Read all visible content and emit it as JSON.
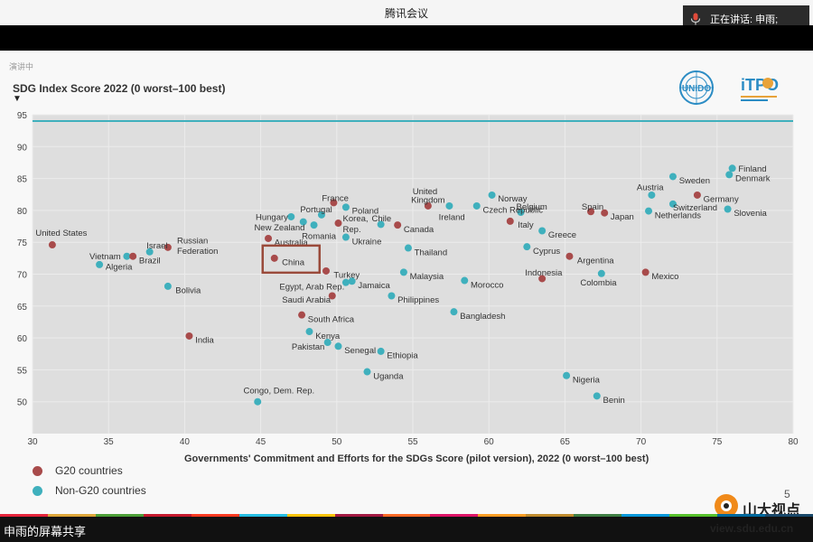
{
  "window": {
    "title": "腾讯会议",
    "speaking_label": "正在讲话: 申雨;",
    "share_label": "申雨的屏幕共享"
  },
  "slide": {
    "watermark": "演讲中",
    "page_number": "5",
    "logos": {
      "unido": "UNIDO",
      "itpo": "iTPO",
      "sdu_name": "山大视点",
      "sdu_url": "view.sdu.edu.cn"
    }
  },
  "colors": {
    "g20": "#a84b4b",
    "non_g20": "#3fb0bd",
    "reference_line": "#3fb0bd",
    "plot_bg": "#dedede",
    "highlight_box": "#9a4a3a"
  },
  "chart_data": {
    "type": "scatter",
    "title": "SDG Index Score 2022 (0 worst–100 best)",
    "ylabel_arrow": "▼",
    "xlabel": "Governments' Commitment and Efforts for the SDGs Score (pilot version), 2022 (0 worst–100 best)",
    "xlim": [
      30,
      80
    ],
    "ylim": [
      45,
      95
    ],
    "xticks": [
      30,
      35,
      40,
      45,
      50,
      55,
      60,
      65,
      70,
      75,
      80
    ],
    "yticks": [
      50,
      55,
      60,
      65,
      70,
      75,
      80,
      85,
      90,
      95
    ],
    "reference_line_y": 94,
    "grid": true,
    "highlight": "China",
    "legend": [
      {
        "name": "G20 countries",
        "group": "g20"
      },
      {
        "name": "Non-G20 countries",
        "group": "non_g20"
      }
    ],
    "points": [
      {
        "label": "United States",
        "x": 31.3,
        "y": 74.6,
        "group": "g20",
        "lx": 30.2,
        "ly": 76.5,
        "anchor": "start"
      },
      {
        "label": "Vietnam",
        "x": 36.2,
        "y": 72.8,
        "group": "non_g20",
        "lx": 35.8,
        "ly": 72.8,
        "anchor": "end"
      },
      {
        "label": "Brazil",
        "x": 36.6,
        "y": 72.8,
        "group": "g20",
        "lx": 37.0,
        "ly": 72.2,
        "anchor": "start"
      },
      {
        "label": "Algeria",
        "x": 34.4,
        "y": 71.5,
        "group": "non_g20",
        "lx": 34.8,
        "ly": 71.2,
        "anchor": "start"
      },
      {
        "label": "Israel",
        "x": 37.7,
        "y": 73.5,
        "group": "non_g20",
        "lx": 37.5,
        "ly": 74.5,
        "anchor": "start"
      },
      {
        "label": "Russian",
        "x": 38.9,
        "y": 74.2,
        "group": "g20",
        "lx": 39.5,
        "ly": 75.3,
        "anchor": "start"
      },
      {
        "label": "Federation",
        "lx": 39.5,
        "ly": 73.7,
        "anchor": "start"
      },
      {
        "label": "Bolivia",
        "x": 38.9,
        "y": 68.1,
        "group": "non_g20",
        "lx": 39.4,
        "ly": 67.5,
        "anchor": "start"
      },
      {
        "label": "India",
        "x": 40.3,
        "y": 60.3,
        "group": "g20",
        "lx": 40.7,
        "ly": 59.7,
        "anchor": "start"
      },
      {
        "label": "Congo, Dem. Rep.",
        "x": 44.8,
        "y": 50.0,
        "group": "non_g20",
        "lx": 46.2,
        "ly": 51.8,
        "anchor": "middle"
      },
      {
        "label": "Hungary",
        "x": 47.0,
        "y": 79.0,
        "group": "non_g20",
        "lx": 46.8,
        "ly": 79.0,
        "anchor": "end"
      },
      {
        "label": "New Zealand",
        "x": 47.8,
        "y": 78.2,
        "group": "non_g20",
        "lx": 47.9,
        "ly": 77.4,
        "anchor": "end"
      },
      {
        "label": "Australia",
        "x": 45.5,
        "y": 75.6,
        "group": "g20",
        "lx": 45.9,
        "ly": 75.0,
        "anchor": "start"
      },
      {
        "label": "Portugal",
        "x": 49.0,
        "y": 79.3,
        "group": "non_g20",
        "lx": 49.7,
        "ly": 80.2,
        "anchor": "end"
      },
      {
        "label": "France",
        "x": 49.8,
        "y": 81.2,
        "group": "g20",
        "lx": 49.9,
        "ly": 82.0,
        "anchor": "middle"
      },
      {
        "label": "Poland",
        "x": 50.6,
        "y": 80.5,
        "group": "non_g20",
        "lx": 51.0,
        "ly": 80.0,
        "anchor": "start"
      },
      {
        "label": "Romania",
        "x": 48.5,
        "y": 77.7,
        "group": "non_g20",
        "lx": 47.7,
        "ly": 76.0,
        "anchor": "start"
      },
      {
        "label": "Korea,",
        "x": 50.1,
        "y": 78.0,
        "group": "g20",
        "lx": 50.4,
        "ly": 78.8,
        "anchor": "start"
      },
      {
        "label": "Rep.",
        "lx": 50.4,
        "ly": 77.1,
        "anchor": "start"
      },
      {
        "label": "Ukraine",
        "x": 50.6,
        "y": 75.8,
        "group": "non_g20",
        "lx": 51.0,
        "ly": 75.2,
        "anchor": "start"
      },
      {
        "label": "Chile",
        "x": 52.9,
        "y": 77.8,
        "group": "non_g20",
        "lx": 52.3,
        "ly": 78.8,
        "anchor": "start"
      },
      {
        "label": "Canada",
        "x": 54.0,
        "y": 77.7,
        "group": "g20",
        "lx": 54.4,
        "ly": 77.1,
        "anchor": "start"
      },
      {
        "label": "United",
        "x": 56.0,
        "y": 80.7,
        "group": "g20",
        "lx": 55.8,
        "ly": 83.0,
        "anchor": "middle"
      },
      {
        "label": "Kingdom",
        "lx": 56.0,
        "ly": 81.7,
        "anchor": "middle"
      },
      {
        "label": "Ireland",
        "x": 57.4,
        "y": 80.7,
        "group": "non_g20",
        "lx": 56.7,
        "ly": 79.0,
        "anchor": "start"
      },
      {
        "label": "Norway",
        "x": 60.2,
        "y": 82.4,
        "group": "non_g20",
        "lx": 60.6,
        "ly": 81.9,
        "anchor": "start"
      },
      {
        "label": "Czech Republic",
        "x": 59.2,
        "y": 80.7,
        "group": "non_g20",
        "lx": 59.6,
        "ly": 80.1,
        "anchor": "start"
      },
      {
        "label": "Italy",
        "x": 59.5,
        "y": 78.3,
        "group": "g20",
        "lx": 61.9,
        "ly": 77.8,
        "anchor": "start",
        "dx": 61.4
      },
      {
        "label": "Thailand",
        "x": 54.7,
        "y": 74.1,
        "group": "non_g20",
        "lx": 55.1,
        "ly": 73.5,
        "anchor": "start"
      },
      {
        "label": "Turkey",
        "x": 49.3,
        "y": 70.5,
        "group": "g20",
        "lx": 49.8,
        "ly": 69.9,
        "anchor": "start"
      },
      {
        "label": "China",
        "x": 45.9,
        "y": 72.5,
        "group": "g20",
        "lx": 46.4,
        "ly": 71.9,
        "anchor": "start"
      },
      {
        "label": "Egypt, Arab Rep.",
        "x": 50.6,
        "y": 68.7,
        "group": "non_g20",
        "lx": 50.5,
        "ly": 68.1,
        "anchor": "end"
      },
      {
        "label": "Jamaica",
        "x": 51.0,
        "y": 68.9,
        "group": "non_g20",
        "lx": 51.4,
        "ly": 68.3,
        "anchor": "start"
      },
      {
        "label": "Saudi Arabia",
        "x": 49.7,
        "y": 66.6,
        "group": "g20",
        "lx": 49.6,
        "ly": 66.0,
        "anchor": "end"
      },
      {
        "label": "Malaysia",
        "x": 54.4,
        "y": 70.3,
        "group": "non_g20",
        "lx": 54.8,
        "ly": 69.7,
        "anchor": "start"
      },
      {
        "label": "Philippines",
        "x": 53.6,
        "y": 66.6,
        "group": "non_g20",
        "lx": 54.0,
        "ly": 66.0,
        "anchor": "start"
      },
      {
        "label": "Morocco",
        "x": 58.4,
        "y": 69.0,
        "group": "non_g20",
        "lx": 58.8,
        "ly": 68.4,
        "anchor": "start"
      },
      {
        "label": "South Africa",
        "x": 47.7,
        "y": 63.6,
        "group": "g20",
        "lx": 48.1,
        "ly": 63.0,
        "anchor": "start"
      },
      {
        "label": "Bangladesh",
        "x": 57.7,
        "y": 64.1,
        "group": "non_g20",
        "lx": 58.1,
        "ly": 63.5,
        "anchor": "start"
      },
      {
        "label": "Kenya",
        "x": 48.2,
        "y": 61.0,
        "group": "non_g20",
        "lx": 48.6,
        "ly": 60.4,
        "anchor": "start"
      },
      {
        "label": "Pakistan",
        "x": 49.4,
        "y": 59.3,
        "group": "non_g20",
        "lx": 49.2,
        "ly": 58.7,
        "anchor": "end"
      },
      {
        "label": "Senegal",
        "x": 50.1,
        "y": 58.7,
        "group": "non_g20",
        "lx": 50.5,
        "ly": 58.1,
        "anchor": "start"
      },
      {
        "label": "Ethiopia",
        "x": 52.9,
        "y": 57.9,
        "group": "non_g20",
        "lx": 53.3,
        "ly": 57.3,
        "anchor": "start"
      },
      {
        "label": "Uganda",
        "x": 52.0,
        "y": 54.7,
        "group": "non_g20",
        "lx": 52.4,
        "ly": 54.1,
        "anchor": "start"
      },
      {
        "label": "Belgium",
        "x": 62.1,
        "y": 79.7,
        "group": "non_g20",
        "lx": 61.8,
        "ly": 80.6,
        "anchor": "start"
      },
      {
        "label": "Spain",
        "x": 66.7,
        "y": 79.8,
        "group": "g20",
        "lx": 66.1,
        "ly": 80.6,
        "anchor": "start"
      },
      {
        "label": "Japan",
        "x": 67.6,
        "y": 79.6,
        "group": "g20",
        "lx": 68.0,
        "ly": 79.1,
        "anchor": "start"
      },
      {
        "label": "Greece",
        "x": 63.5,
        "y": 76.8,
        "group": "non_g20",
        "lx": 63.9,
        "ly": 76.2,
        "anchor": "start"
      },
      {
        "label": "Cyprus",
        "x": 62.5,
        "y": 74.3,
        "group": "non_g20",
        "lx": 62.9,
        "ly": 73.7,
        "anchor": "start"
      },
      {
        "label": "Argentina",
        "x": 65.3,
        "y": 72.8,
        "group": "g20",
        "lx": 65.8,
        "ly": 72.2,
        "anchor": "start"
      },
      {
        "label": "Indonesia",
        "x": 63.5,
        "y": 69.3,
        "group": "g20",
        "lx": 63.6,
        "ly": 70.3,
        "anchor": "middle"
      },
      {
        "label": "Colombia",
        "x": 67.4,
        "y": 70.1,
        "group": "non_g20",
        "lx": 67.2,
        "ly": 68.7,
        "anchor": "middle"
      },
      {
        "label": "Mexico",
        "x": 70.3,
        "y": 70.3,
        "group": "g20",
        "lx": 70.7,
        "ly": 69.7,
        "anchor": "start"
      },
      {
        "label": "Nigeria",
        "x": 65.1,
        "y": 54.1,
        "group": "non_g20",
        "lx": 65.5,
        "ly": 53.5,
        "anchor": "start"
      },
      {
        "label": "Benin",
        "x": 67.1,
        "y": 50.9,
        "group": "non_g20",
        "lx": 67.5,
        "ly": 50.3,
        "anchor": "start"
      },
      {
        "label": "Austria",
        "x": 70.7,
        "y": 82.4,
        "group": "non_g20",
        "lx": 70.6,
        "ly": 83.7,
        "anchor": "middle"
      },
      {
        "label": "Sweden",
        "x": 72.1,
        "y": 85.3,
        "group": "non_g20",
        "lx": 72.5,
        "ly": 84.7,
        "anchor": "start"
      },
      {
        "label": "Germany",
        "x": 73.7,
        "y": 82.4,
        "group": "g20",
        "lx": 74.1,
        "ly": 81.8,
        "anchor": "start"
      },
      {
        "label": "Switzerland",
        "x": 72.1,
        "y": 81.0,
        "group": "non_g20",
        "lx": 72.1,
        "ly": 80.5,
        "anchor": "start"
      },
      {
        "label": "Netherlands",
        "x": 70.5,
        "y": 79.9,
        "group": "non_g20",
        "lx": 70.9,
        "ly": 79.3,
        "anchor": "start"
      },
      {
        "label": "Finland",
        "x": 76.0,
        "y": 86.6,
        "group": "non_g20",
        "lx": 76.4,
        "ly": 86.6,
        "anchor": "start"
      },
      {
        "label": "Denmark",
        "x": 75.8,
        "y": 85.6,
        "group": "non_g20",
        "lx": 76.2,
        "ly": 85.1,
        "anchor": "start"
      },
      {
        "label": "Slovenia",
        "x": 75.7,
        "y": 80.2,
        "group": "non_g20",
        "lx": 76.1,
        "ly": 79.6,
        "anchor": "start"
      }
    ]
  }
}
